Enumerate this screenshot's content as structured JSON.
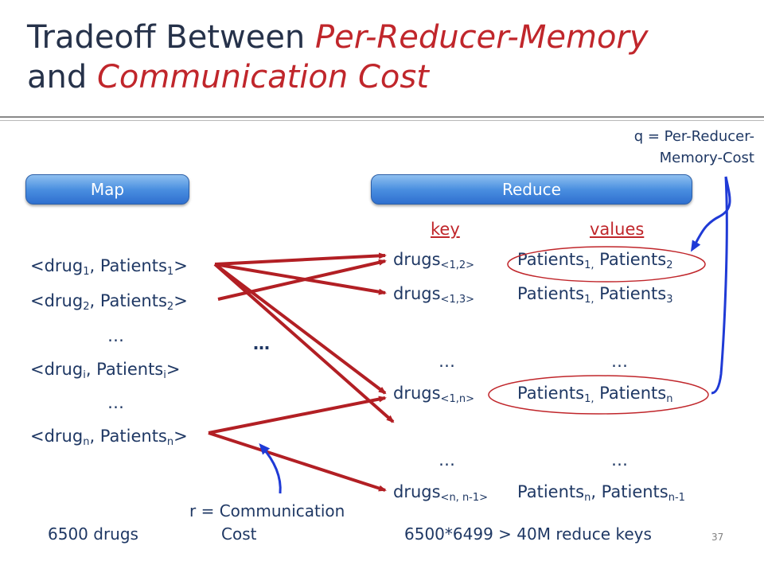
{
  "title": {
    "part1": "Tradeoff Between ",
    "emph1": "Per-Reducer-Memory",
    "part2": "and ",
    "emph2": "Communication Cost"
  },
  "map_label": "Map",
  "reduce_label": "Reduce",
  "q_note": {
    "line1": "q = Per-Reducer-",
    "line2": "Memory-Cost"
  },
  "r_note": {
    "line1": "r = Communication",
    "line2": "Cost"
  },
  "headers": {
    "key": "key",
    "values": "values"
  },
  "map_items": [
    {
      "pre": "<drug",
      "sub": "1",
      "mid": ", Patients",
      "sub2": "1",
      "post": ">"
    },
    {
      "pre": "<drug",
      "sub": "2",
      "mid": ", Patients",
      "sub2": "2",
      "post": ">"
    },
    {
      "ellipsis": "…"
    },
    {
      "pre": "<drug",
      "sub": "i",
      "mid": ", Patients",
      "sub2": "i",
      "post": ">"
    },
    {
      "ellipsis": "…"
    },
    {
      "pre": "<drug",
      "sub": "n",
      "mid": ", Patients",
      "sub2": "n",
      "post": ">"
    }
  ],
  "mid_ellipsis": "…",
  "reduce_rows": [
    {
      "key": "drugs",
      "key_sub": "<1,2>",
      "v1": "Patients",
      "v1_sub": "1,",
      "v2": " Patients",
      "v2_sub": "2"
    },
    {
      "key": "drugs",
      "key_sub": "<1,3>",
      "v1": "Patients",
      "v1_sub": "1,",
      "v2": " Patients",
      "v2_sub": "3"
    },
    {
      "key_ellipsis": "…",
      "val_ellipsis": "…"
    },
    {
      "key": "drugs",
      "key_sub": "<1,n>",
      "v1": "Patients",
      "v1_sub": "1,",
      "v2": " Patients",
      "v2_sub": "n"
    },
    {
      "key_ellipsis": "…",
      "val_ellipsis": "…"
    },
    {
      "key": "drugs",
      "key_sub": "<n, n-1>",
      "v1": "Patients",
      "v1_sub": "n",
      "v2": ", Patients",
      "v2_sub": "n-1"
    }
  ],
  "footer_left": "6500 drugs",
  "footer_right": "6500*6499 > 40M reduce keys",
  "page_number": "37",
  "colors": {
    "arrow": "#b21f24",
    "blue_arrow": "#1f3ad6",
    "ellipse": "#c0262b"
  }
}
